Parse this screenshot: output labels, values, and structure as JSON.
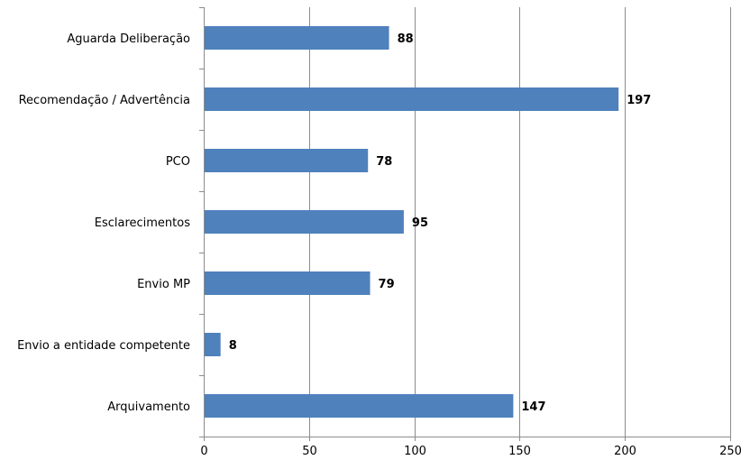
{
  "chart_data": {
    "type": "bar",
    "orientation": "horizontal",
    "categories": [
      "Aguarda Deliberação",
      "Recomendação / Advertência",
      "PCO",
      "Esclarecimentos",
      "Envio MP",
      "Envio a entidade competente",
      "Arquivamento"
    ],
    "values": [
      88,
      197,
      78,
      95,
      79,
      8,
      147
    ],
    "xlim": [
      0,
      250
    ],
    "xticks": [
      0,
      50,
      100,
      150,
      200,
      250
    ],
    "grid": true,
    "legend": "none",
    "bar_color": "#4f81bd",
    "data_labels": true
  }
}
